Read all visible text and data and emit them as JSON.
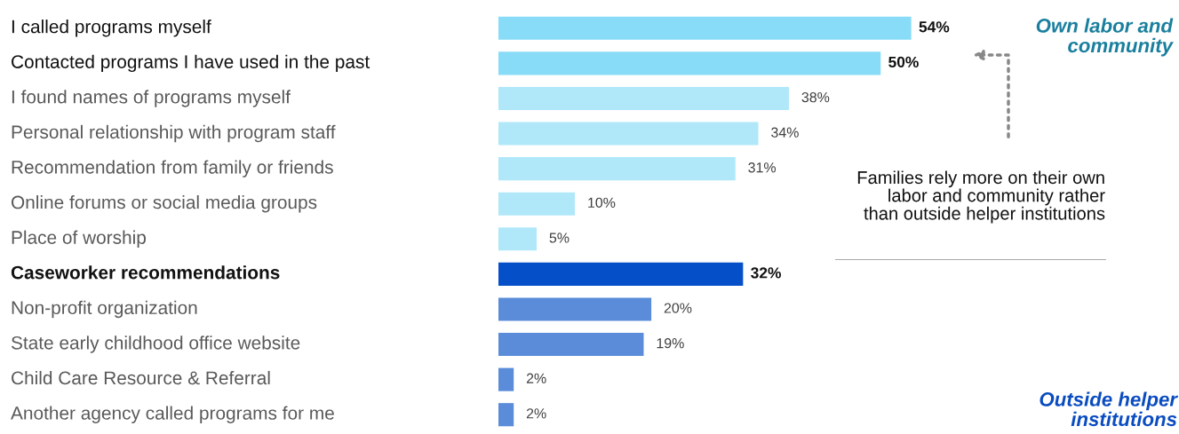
{
  "chart_data": {
    "type": "bar",
    "orientation": "horizontal",
    "categories": [
      "I called programs myself",
      "Contacted programs I have used in the past",
      "I found names of programs myself",
      "Personal relationship with program staff",
      "Recommendation from family or friends",
      "Online forums or social media groups",
      "Place of worship",
      "Caseworker recommendations",
      "Non-profit organization",
      "State early childhood office website",
      "Child Care Resource & Referral",
      "Another agency called programs for me"
    ],
    "values": [
      54,
      50,
      38,
      34,
      31,
      10,
      5,
      32,
      20,
      19,
      2,
      2
    ],
    "colors": [
      "#88dcf8",
      "#88dcf8",
      "#b0e8fa",
      "#b0e8fa",
      "#b0e8fa",
      "#b0e8fa",
      "#b0e8fa",
      "#0550c8",
      "#5b8cda",
      "#5b8cda",
      "#5b8cda",
      "#5b8cda"
    ],
    "value_labels": [
      "54%",
      "50%",
      "38%",
      "34%",
      "31%",
      "10%",
      "5%",
      "32%",
      "20%",
      "19%",
      "2%",
      "2%"
    ],
    "tick_labels": "y",
    "annotations": [
      "Own labor and community",
      "Families rely more on their own labor and community rather than outside helper institutions",
      "Outside helper institutions"
    ]
  }
}
